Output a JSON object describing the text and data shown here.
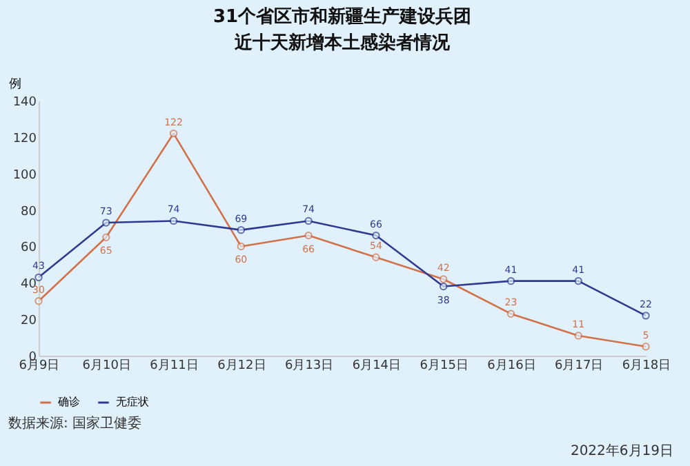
{
  "chart_data": {
    "type": "line",
    "title": "31个省区市和新疆生产建设兵团",
    "subtitle": "近十天新增本土感染者情况",
    "ylabel": "例",
    "categories": [
      "6月9日",
      "6月10日",
      "6月11日",
      "6月12日",
      "6月13日",
      "6月14日",
      "6月15日",
      "6月16日",
      "6月17日",
      "6月18日"
    ],
    "series": [
      {
        "name": "确诊",
        "color": "#d0714a",
        "values": [
          30,
          65,
          122,
          60,
          66,
          54,
          42,
          23,
          11,
          5
        ]
      },
      {
        "name": "无症状",
        "color": "#2f3a8f",
        "values": [
          43,
          73,
          74,
          69,
          74,
          66,
          38,
          41,
          41,
          22
        ]
      }
    ],
    "ylim": [
      0,
      140
    ],
    "yticks": [
      0,
      20,
      40,
      60,
      80,
      100,
      120,
      140
    ],
    "data_labels": true,
    "marker": "circle",
    "legend": "bottom",
    "annotations": [
      "数据来源: 国家卫健委",
      "2022年6月19日"
    ]
  }
}
